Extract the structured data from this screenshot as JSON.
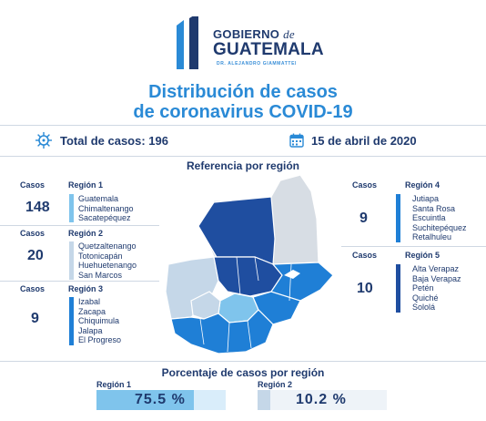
{
  "header": {
    "gov_line1": "GOBIERNO",
    "gov_de": "de",
    "gov_line2": "GUATEMALA",
    "gov_line3": "DR. ALEJANDRO GIAMMATTEI"
  },
  "title": {
    "line1": "Distribución de casos",
    "line2": "de coronavirus COVID-19"
  },
  "summary": {
    "total_label": "Total de casos: 196",
    "date": "15 de abril de 2020",
    "virus_icon": "virus-icon",
    "calendar_icon": "calendar-icon"
  },
  "reference_title": "Referencia por región",
  "cases_label": "Casos",
  "regions": [
    {
      "name": "Región 1",
      "count": "148",
      "color": "#7fc4ec",
      "departments": [
        "Guatemala",
        "Chimaltenango",
        "Sacatepéquez"
      ]
    },
    {
      "name": "Región 2",
      "count": "20",
      "color": "#c5d7e8",
      "departments": [
        "Quetzaltenango",
        "Totonicapán",
        "Huehuetenango",
        "San Marcos"
      ]
    },
    {
      "name": "Región 3",
      "count": "9",
      "color": "#1f7fd6",
      "departments": [
        "Izabal",
        "Zacapa",
        "Chiquimula",
        "Jalapa",
        "El Progreso"
      ]
    },
    {
      "name": "Región 4",
      "count": "9",
      "color": "#1f7fd6",
      "departments": [
        "Jutiapa",
        "Santa Rosa",
        "Escuintla",
        "Suchitepéquez",
        "Retalhuleu"
      ]
    },
    {
      "name": "Región 5",
      "count": "10",
      "color": "#1f4ea0",
      "departments": [
        "Alta Verapaz",
        "Baja Verapaz",
        "Petén",
        "Quiché",
        "Sololá"
      ]
    }
  ],
  "percentage_title": "Porcentaje de casos por región",
  "percentages": [
    {
      "label": "Región 1",
      "value": "75.5 %",
      "fraction": 0.755,
      "fill": "#7fc4ec",
      "track": "#d9edfa"
    },
    {
      "label": "Región 2",
      "value": "10.2 %",
      "fraction": 0.102,
      "fill": "#c5d7e8",
      "track": "#eef3f8"
    }
  ],
  "colors": {
    "brand_dark": "#1f3a6e",
    "brand_blue": "#2a8ad6",
    "map_petén_region": "#d7dde4"
  }
}
